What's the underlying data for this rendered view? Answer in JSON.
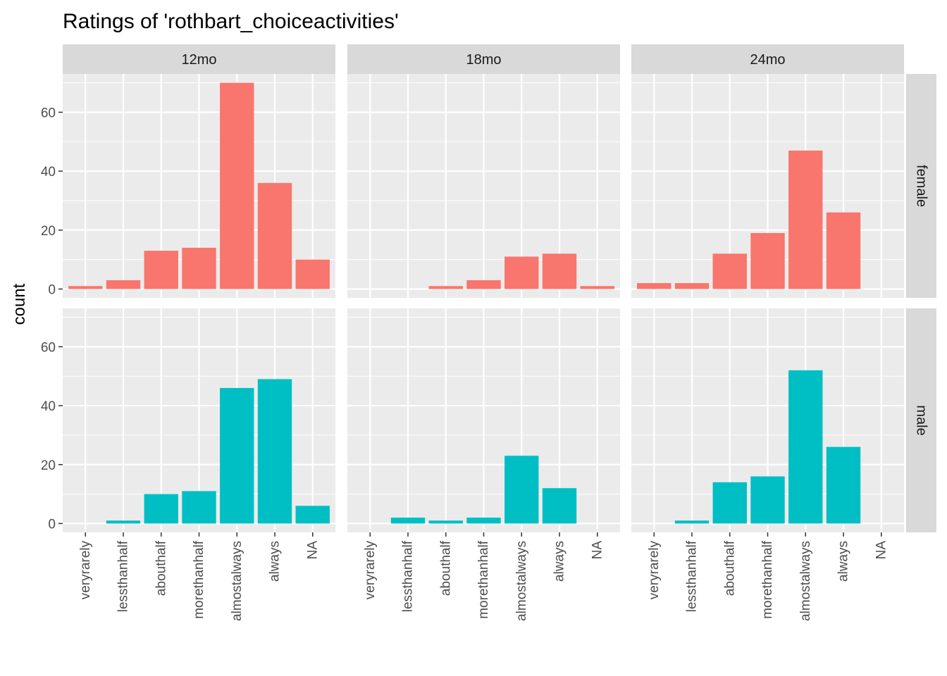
{
  "chart_data": {
    "type": "bar",
    "title": "Ratings of 'rothbart_choiceactivities'",
    "xlabel": "",
    "ylabel": "count",
    "ylim": [
      -3,
      73
    ],
    "yticks": [
      0,
      20,
      40,
      60
    ],
    "categories": [
      "veryrarely",
      "lessthanhalf",
      "abouthalf",
      "morethanhalf",
      "almostalways",
      "always",
      "NA"
    ],
    "facet_columns": [
      "12mo",
      "18mo",
      "24mo"
    ],
    "facet_rows": [
      "female",
      "male"
    ],
    "colors": {
      "female": "#F8766D",
      "male": "#00BFC4",
      "panel_bg": "#EBEBEB",
      "strip_bg": "#D9D9D9",
      "grid": "#FFFFFF"
    },
    "grid": true,
    "legend": "none",
    "panels": [
      {
        "row": "female",
        "col": "12mo",
        "values": [
          1,
          3,
          13,
          14,
          70,
          36,
          10
        ]
      },
      {
        "row": "female",
        "col": "18mo",
        "values": [
          0,
          0,
          1,
          3,
          11,
          12,
          1
        ]
      },
      {
        "row": "female",
        "col": "24mo",
        "values": [
          2,
          2,
          12,
          19,
          47,
          26,
          0
        ]
      },
      {
        "row": "male",
        "col": "12mo",
        "values": [
          0,
          1,
          10,
          11,
          46,
          49,
          6
        ]
      },
      {
        "row": "male",
        "col": "18mo",
        "values": [
          0,
          2,
          1,
          2,
          23,
          12,
          0
        ]
      },
      {
        "row": "male",
        "col": "24mo",
        "values": [
          0,
          1,
          14,
          16,
          52,
          26,
          0
        ]
      }
    ]
  }
}
